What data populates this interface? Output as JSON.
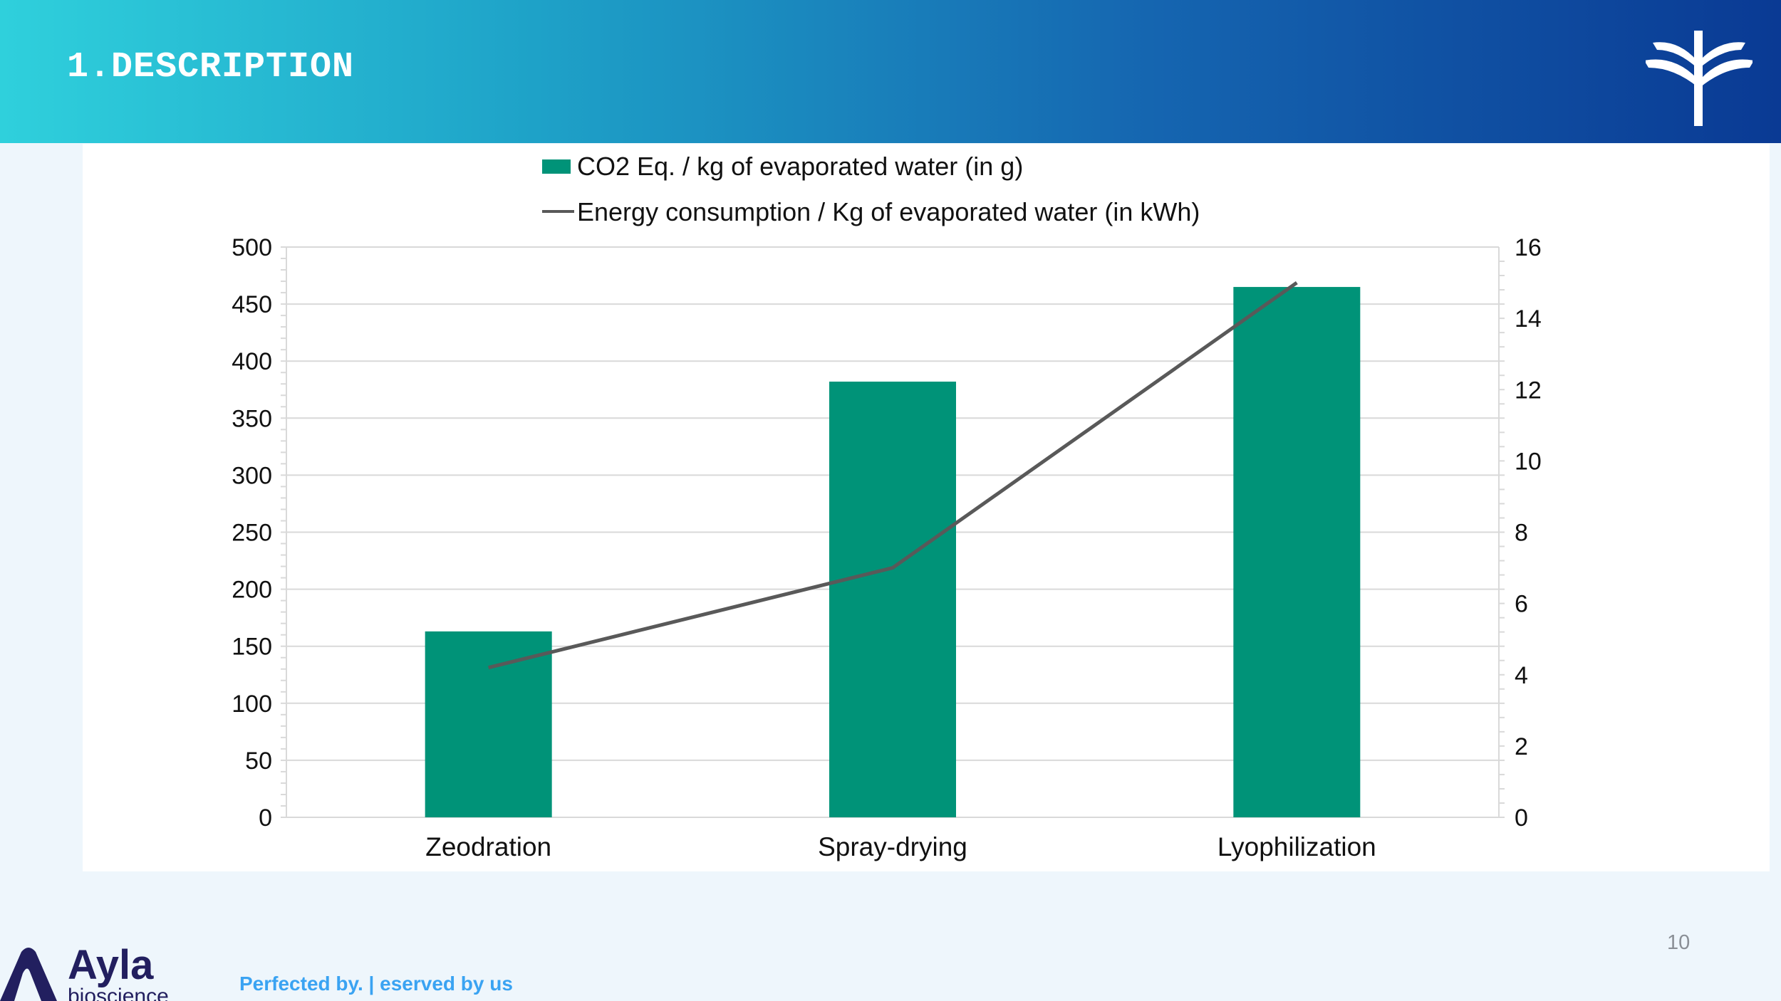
{
  "header": {
    "title": "1.DESCRIPTION"
  },
  "footer": {
    "page_number": "10",
    "tagline": "Perfected by. | eserved by us",
    "logo_text": "Ayla bioscience"
  },
  "colors": {
    "bar": "#009378",
    "line": "#595959",
    "grid": "#d9d9d9"
  },
  "chart_data": {
    "type": "bar",
    "categories": [
      "Zeodration",
      "Spray-drying",
      "Lyophilization"
    ],
    "series": [
      {
        "name": "CO2 Eq. / kg of evaporated water (in g)",
        "type": "bar",
        "axis": "left",
        "values": [
          163,
          382,
          465
        ]
      },
      {
        "name": "Energy consumption / Kg of evaporated water (in kWh)",
        "type": "line",
        "axis": "right",
        "values": [
          4.2,
          7.0,
          15.0
        ]
      }
    ],
    "ylim": [
      0,
      500
    ],
    "yticks": [
      "0",
      "50",
      "100",
      "150",
      "200",
      "250",
      "300",
      "350",
      "400",
      "450",
      "500"
    ],
    "y2lim": [
      0,
      16
    ],
    "y2ticks": [
      "0",
      "2",
      "4",
      "6",
      "8",
      "10",
      "12",
      "14",
      "16"
    ],
    "legend": "top",
    "grid": true
  }
}
